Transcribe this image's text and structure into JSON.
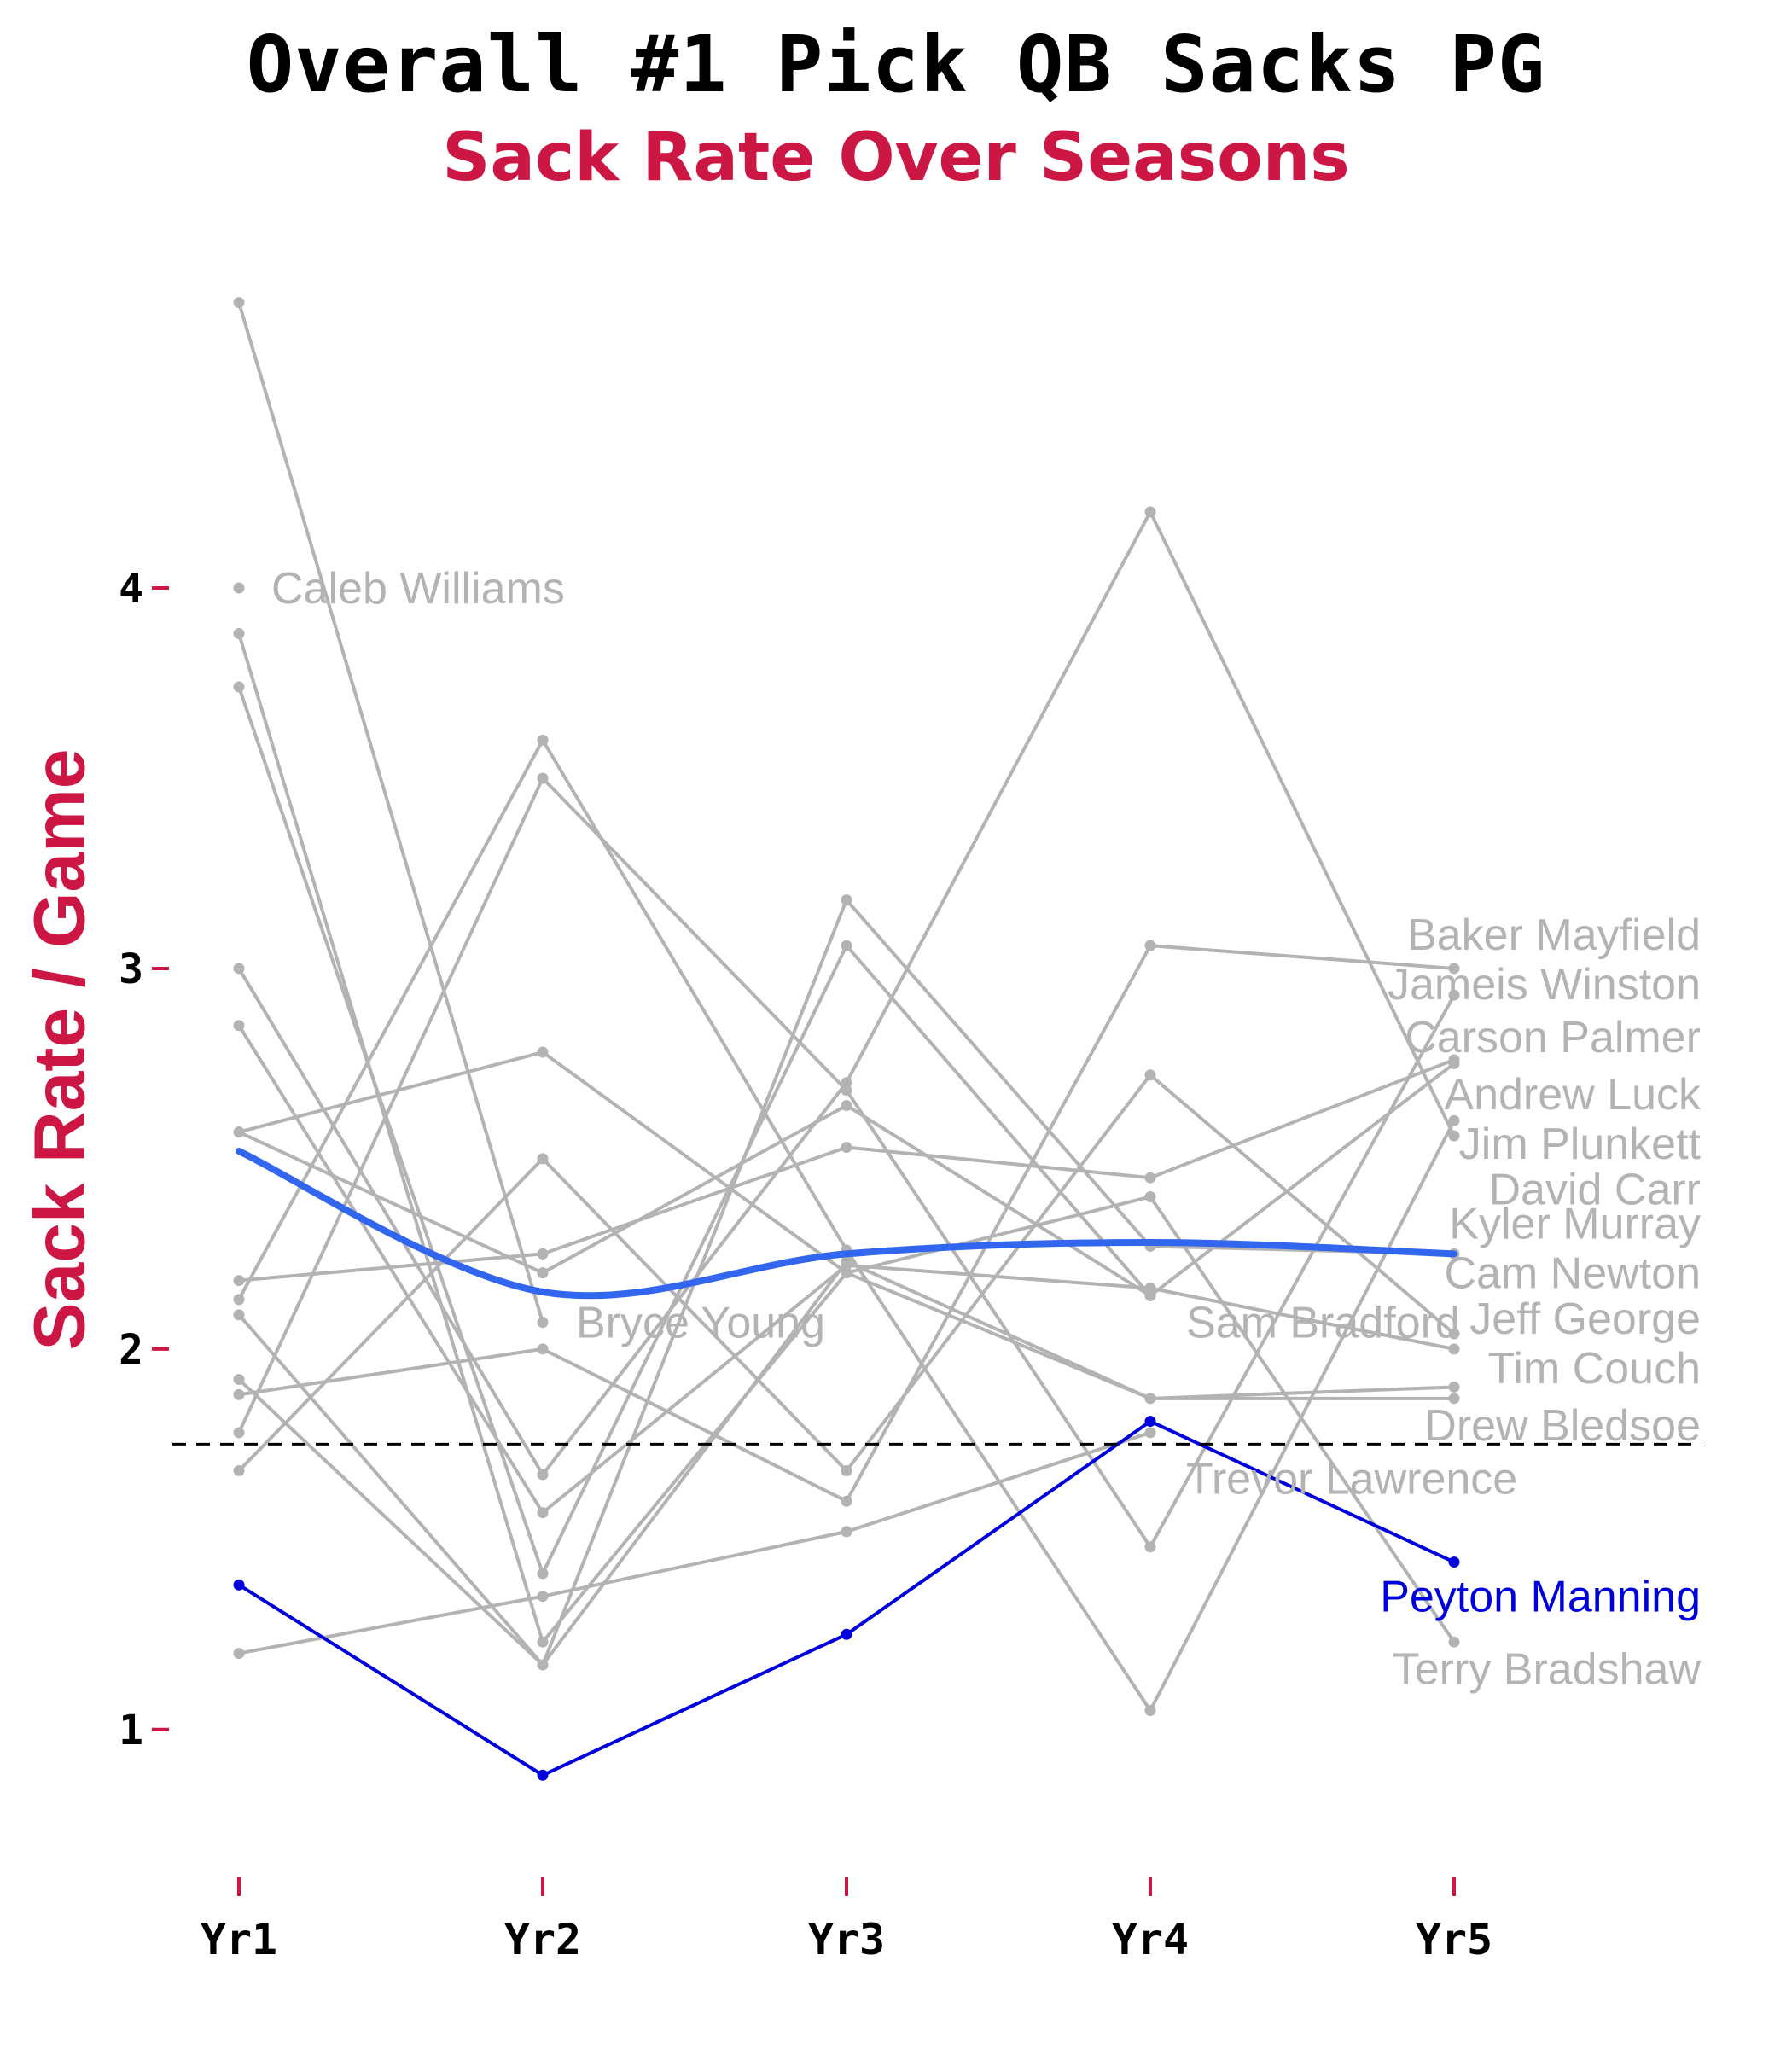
{
  "title": "Overall #1 Pick QB Sacks PG",
  "subtitle": "Sack Rate Over Seasons",
  "colors": {
    "accent": "#cc1744",
    "gray_line": "#b3b3b3",
    "highlight": "#0000dd",
    "trend": "#3366ee",
    "reference": "#000000"
  },
  "chart_data": {
    "type": "line",
    "title": "Overall #1 Pick QB Sacks PG",
    "subtitle": "Sack Rate Over Seasons",
    "xlabel": "",
    "ylabel": "Sack Rate / Game",
    "categories": [
      "Yr1",
      "Yr2",
      "Yr3",
      "Yr4",
      "Yr5"
    ],
    "ylim": [
      0.69,
      4.85
    ],
    "yticks": [
      "1",
      "2",
      "3",
      "4"
    ],
    "grid": false,
    "legend": "none",
    "reference_line": {
      "y": 1.75,
      "style": "dashed"
    },
    "highlight_series": "Peyton Manning",
    "series": [
      {
        "name": "Caleb Williams",
        "values": [
          4.0,
          null,
          null,
          null,
          null
        ]
      },
      {
        "name": "Bryce Young",
        "values": [
          4.75,
          2.07,
          null,
          null,
          null
        ]
      },
      {
        "name": "Trevor Lawrence",
        "values": [
          3.88,
          1.23,
          2.2,
          2.4,
          1.23
        ]
      },
      {
        "name": "Sam Bradford",
        "values": [
          2.57,
          2.2,
          2.64,
          2.14,
          null
        ]
      },
      {
        "name": "Baker Mayfield",
        "values": [
          3.74,
          1.41,
          3.06,
          2.14,
          2.75
        ]
      },
      {
        "name": "Jameis Winston",
        "values": [
          1.78,
          3.5,
          2.68,
          1.48,
          2.93
        ]
      },
      {
        "name": "Carson Palmer",
        "values": [
          2.13,
          3.6,
          2.26,
          1.05,
          2.6
        ]
      },
      {
        "name": "Andrew Luck",
        "values": [
          1.88,
          2.0,
          1.6,
          3.06,
          3.0
        ]
      },
      {
        "name": "Jim Plunkett",
        "values": [
          2.18,
          2.25,
          2.53,
          2.45,
          2.76
        ]
      },
      {
        "name": "David Carr",
        "values": [
          1.68,
          2.5,
          1.68,
          2.72,
          2.04
        ]
      },
      {
        "name": "Kyler Murray",
        "values": [
          2.09,
          1.17,
          3.18,
          2.27,
          2.25
        ]
      },
      {
        "name": "Cam Newton",
        "values": [
          2.85,
          1.57,
          2.22,
          2.16,
          2.0
        ]
      },
      {
        "name": "Jeff George",
        "values": [
          3.0,
          1.67,
          2.7,
          4.2,
          2.56
        ]
      },
      {
        "name": "Tim Couch",
        "values": [
          1.92,
          1.17,
          2.23,
          1.87,
          1.9
        ]
      },
      {
        "name": "Drew Bledsoe",
        "values": [
          2.57,
          2.78,
          2.2,
          1.87,
          1.87
        ]
      },
      {
        "name": "Terry Bradshaw",
        "values": [
          1.2,
          1.35,
          1.52,
          1.78,
          null
        ]
      },
      {
        "name": "Peyton Manning",
        "values": [
          1.38,
          0.88,
          1.25,
          1.81,
          1.44
        ]
      }
    ],
    "trend": {
      "name": "smooth",
      "values": [
        2.52,
        2.15,
        2.25,
        2.28,
        2.25
      ]
    },
    "labels": [
      {
        "text": "Caleb Williams",
        "y": 4.0
      },
      {
        "text": "Bryce Young",
        "y": 2.07
      },
      {
        "text": "Sam Bradford",
        "y": 2.07
      },
      {
        "text": "Baker Mayfield",
        "y": 3.09
      },
      {
        "text": "Jameis Winston",
        "y": 2.96
      },
      {
        "text": "Carson Palmer",
        "y": 2.82
      },
      {
        "text": "Andrew Luck",
        "y": 2.67
      },
      {
        "text": "Jim Plunkett",
        "y": 2.54
      },
      {
        "text": "David Carr",
        "y": 2.42
      },
      {
        "text": "Kyler Murray",
        "y": 2.33
      },
      {
        "text": "Cam Newton",
        "y": 2.2
      },
      {
        "text": "Jeff George",
        "y": 2.08
      },
      {
        "text": "Tim Couch",
        "y": 1.95
      },
      {
        "text": "Drew Bledsoe",
        "y": 1.8
      },
      {
        "text": "Trevor Lawrence",
        "y": 1.66
      },
      {
        "text": "Peyton Manning",
        "y": 1.35
      },
      {
        "text": "Terry Bradshaw",
        "y": 1.16
      }
    ]
  }
}
